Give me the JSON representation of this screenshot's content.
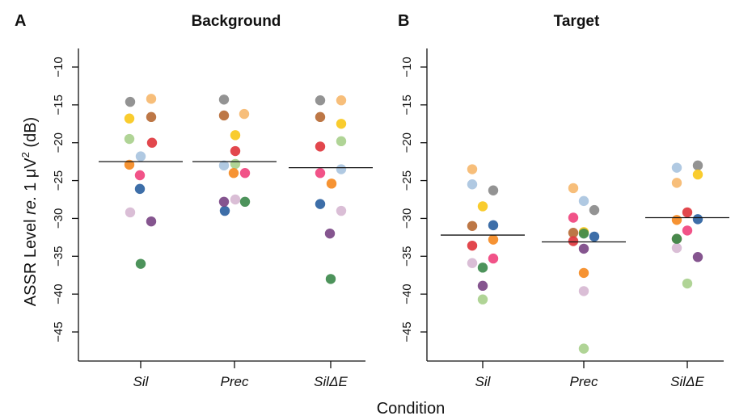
{
  "chart_data": {
    "type": "scatter",
    "ylabel_parts": {
      "pre": "ASSR Level ",
      "italic": "re.",
      "mid": " 1 μV",
      "sup": "2",
      "post": " (dB)"
    },
    "xlabel": "Condition",
    "categories": [
      "Sil",
      "Prec",
      "SilΔE"
    ],
    "yticks": [
      "−10",
      "−15",
      "−20",
      "−25",
      "−30",
      "−35",
      "−40",
      "−45"
    ],
    "ylim": [
      -48,
      -7.5
    ],
    "colors": [
      "#8a8a8a",
      "#f6b96f",
      "#b76b36",
      "#f8c81c",
      "#e0373e",
      "#a9d08d",
      "#a9c4e0",
      "#f58a22",
      "#f0447e",
      "#2d62a1",
      "#d7b8d3",
      "#7b4786",
      "#3e8a4d"
    ],
    "panels": [
      {
        "letter": "A",
        "title": "Background",
        "medians": [
          -22.5,
          -22.5,
          -23.3
        ],
        "groups": [
          {
            "category": "Sil",
            "points": [
              {
                "c": 0,
                "y": -14.6
              },
              {
                "c": 1,
                "y": -14.2
              },
              {
                "c": 2,
                "y": -16.6
              },
              {
                "c": 3,
                "y": -16.8
              },
              {
                "c": 4,
                "y": -20.0
              },
              {
                "c": 5,
                "y": -19.5
              },
              {
                "c": 6,
                "y": -21.8
              },
              {
                "c": 7,
                "y": -22.9
              },
              {
                "c": 8,
                "y": -24.3
              },
              {
                "c": 9,
                "y": -26.1
              },
              {
                "c": 10,
                "y": -29.2
              },
              {
                "c": 11,
                "y": -30.4
              },
              {
                "c": 12,
                "y": -36.0
              }
            ]
          },
          {
            "category": "Prec",
            "points": [
              {
                "c": 0,
                "y": -14.3
              },
              {
                "c": 1,
                "y": -16.2
              },
              {
                "c": 2,
                "y": -16.4
              },
              {
                "c": 3,
                "y": -19.0
              },
              {
                "c": 4,
                "y": -21.1
              },
              {
                "c": 5,
                "y": -22.8
              },
              {
                "c": 6,
                "y": -23.0
              },
              {
                "c": 7,
                "y": -24.0
              },
              {
                "c": 8,
                "y": -24.0
              },
              {
                "c": 9,
                "y": -29.0
              },
              {
                "c": 10,
                "y": -27.5
              },
              {
                "c": 11,
                "y": -27.8
              },
              {
                "c": 12,
                "y": -27.8
              }
            ]
          },
          {
            "category": "SilΔE",
            "points": [
              {
                "c": 0,
                "y": -14.4
              },
              {
                "c": 1,
                "y": -14.4
              },
              {
                "c": 2,
                "y": -16.6
              },
              {
                "c": 3,
                "y": -17.5
              },
              {
                "c": 4,
                "y": -20.5
              },
              {
                "c": 5,
                "y": -19.8
              },
              {
                "c": 6,
                "y": -23.5
              },
              {
                "c": 7,
                "y": -25.4
              },
              {
                "c": 8,
                "y": -24.0
              },
              {
                "c": 9,
                "y": -28.1
              },
              {
                "c": 10,
                "y": -29.0
              },
              {
                "c": 11,
                "y": -32.0
              },
              {
                "c": 12,
                "y": -38.0
              }
            ]
          }
        ]
      },
      {
        "letter": "B",
        "title": "Target",
        "medians": [
          -32.2,
          -33.1,
          -29.9
        ],
        "groups": [
          {
            "category": "Sil",
            "points": [
              {
                "c": 0,
                "y": -26.3
              },
              {
                "c": 1,
                "y": -23.5
              },
              {
                "c": 2,
                "y": -31.0
              },
              {
                "c": 3,
                "y": -28.4
              },
              {
                "c": 4,
                "y": -33.6
              },
              {
                "c": 5,
                "y": -40.7
              },
              {
                "c": 6,
                "y": -25.5
              },
              {
                "c": 7,
                "y": -32.8
              },
              {
                "c": 8,
                "y": -35.3
              },
              {
                "c": 9,
                "y": -30.9
              },
              {
                "c": 10,
                "y": -35.9
              },
              {
                "c": 11,
                "y": -38.9
              },
              {
                "c": 12,
                "y": -36.5
              }
            ]
          },
          {
            "category": "Prec",
            "points": [
              {
                "c": 0,
                "y": -28.9
              },
              {
                "c": 1,
                "y": -26.0
              },
              {
                "c": 2,
                "y": -31.9
              },
              {
                "c": 3,
                "y": -31.8
              },
              {
                "c": 4,
                "y": -33.0
              },
              {
                "c": 5,
                "y": -47.2
              },
              {
                "c": 6,
                "y": -27.7
              },
              {
                "c": 7,
                "y": -37.2
              },
              {
                "c": 8,
                "y": -29.9
              },
              {
                "c": 9,
                "y": -32.4
              },
              {
                "c": 10,
                "y": -39.6
              },
              {
                "c": 11,
                "y": -34.0
              },
              {
                "c": 12,
                "y": -32.0
              }
            ]
          },
          {
            "category": "SilΔE",
            "points": [
              {
                "c": 0,
                "y": -23.0
              },
              {
                "c": 1,
                "y": -25.3
              },
              {
                "c": 2,
                "y": -32.7
              },
              {
                "c": 3,
                "y": -24.2
              },
              {
                "c": 4,
                "y": -29.2
              },
              {
                "c": 5,
                "y": -38.6
              },
              {
                "c": 6,
                "y": -23.3
              },
              {
                "c": 7,
                "y": -30.2
              },
              {
                "c": 8,
                "y": -31.6
              },
              {
                "c": 9,
                "y": -30.1
              },
              {
                "c": 10,
                "y": -33.9
              },
              {
                "c": 11,
                "y": -35.1
              },
              {
                "c": 12,
                "y": -32.7
              }
            ]
          }
        ]
      }
    ]
  }
}
